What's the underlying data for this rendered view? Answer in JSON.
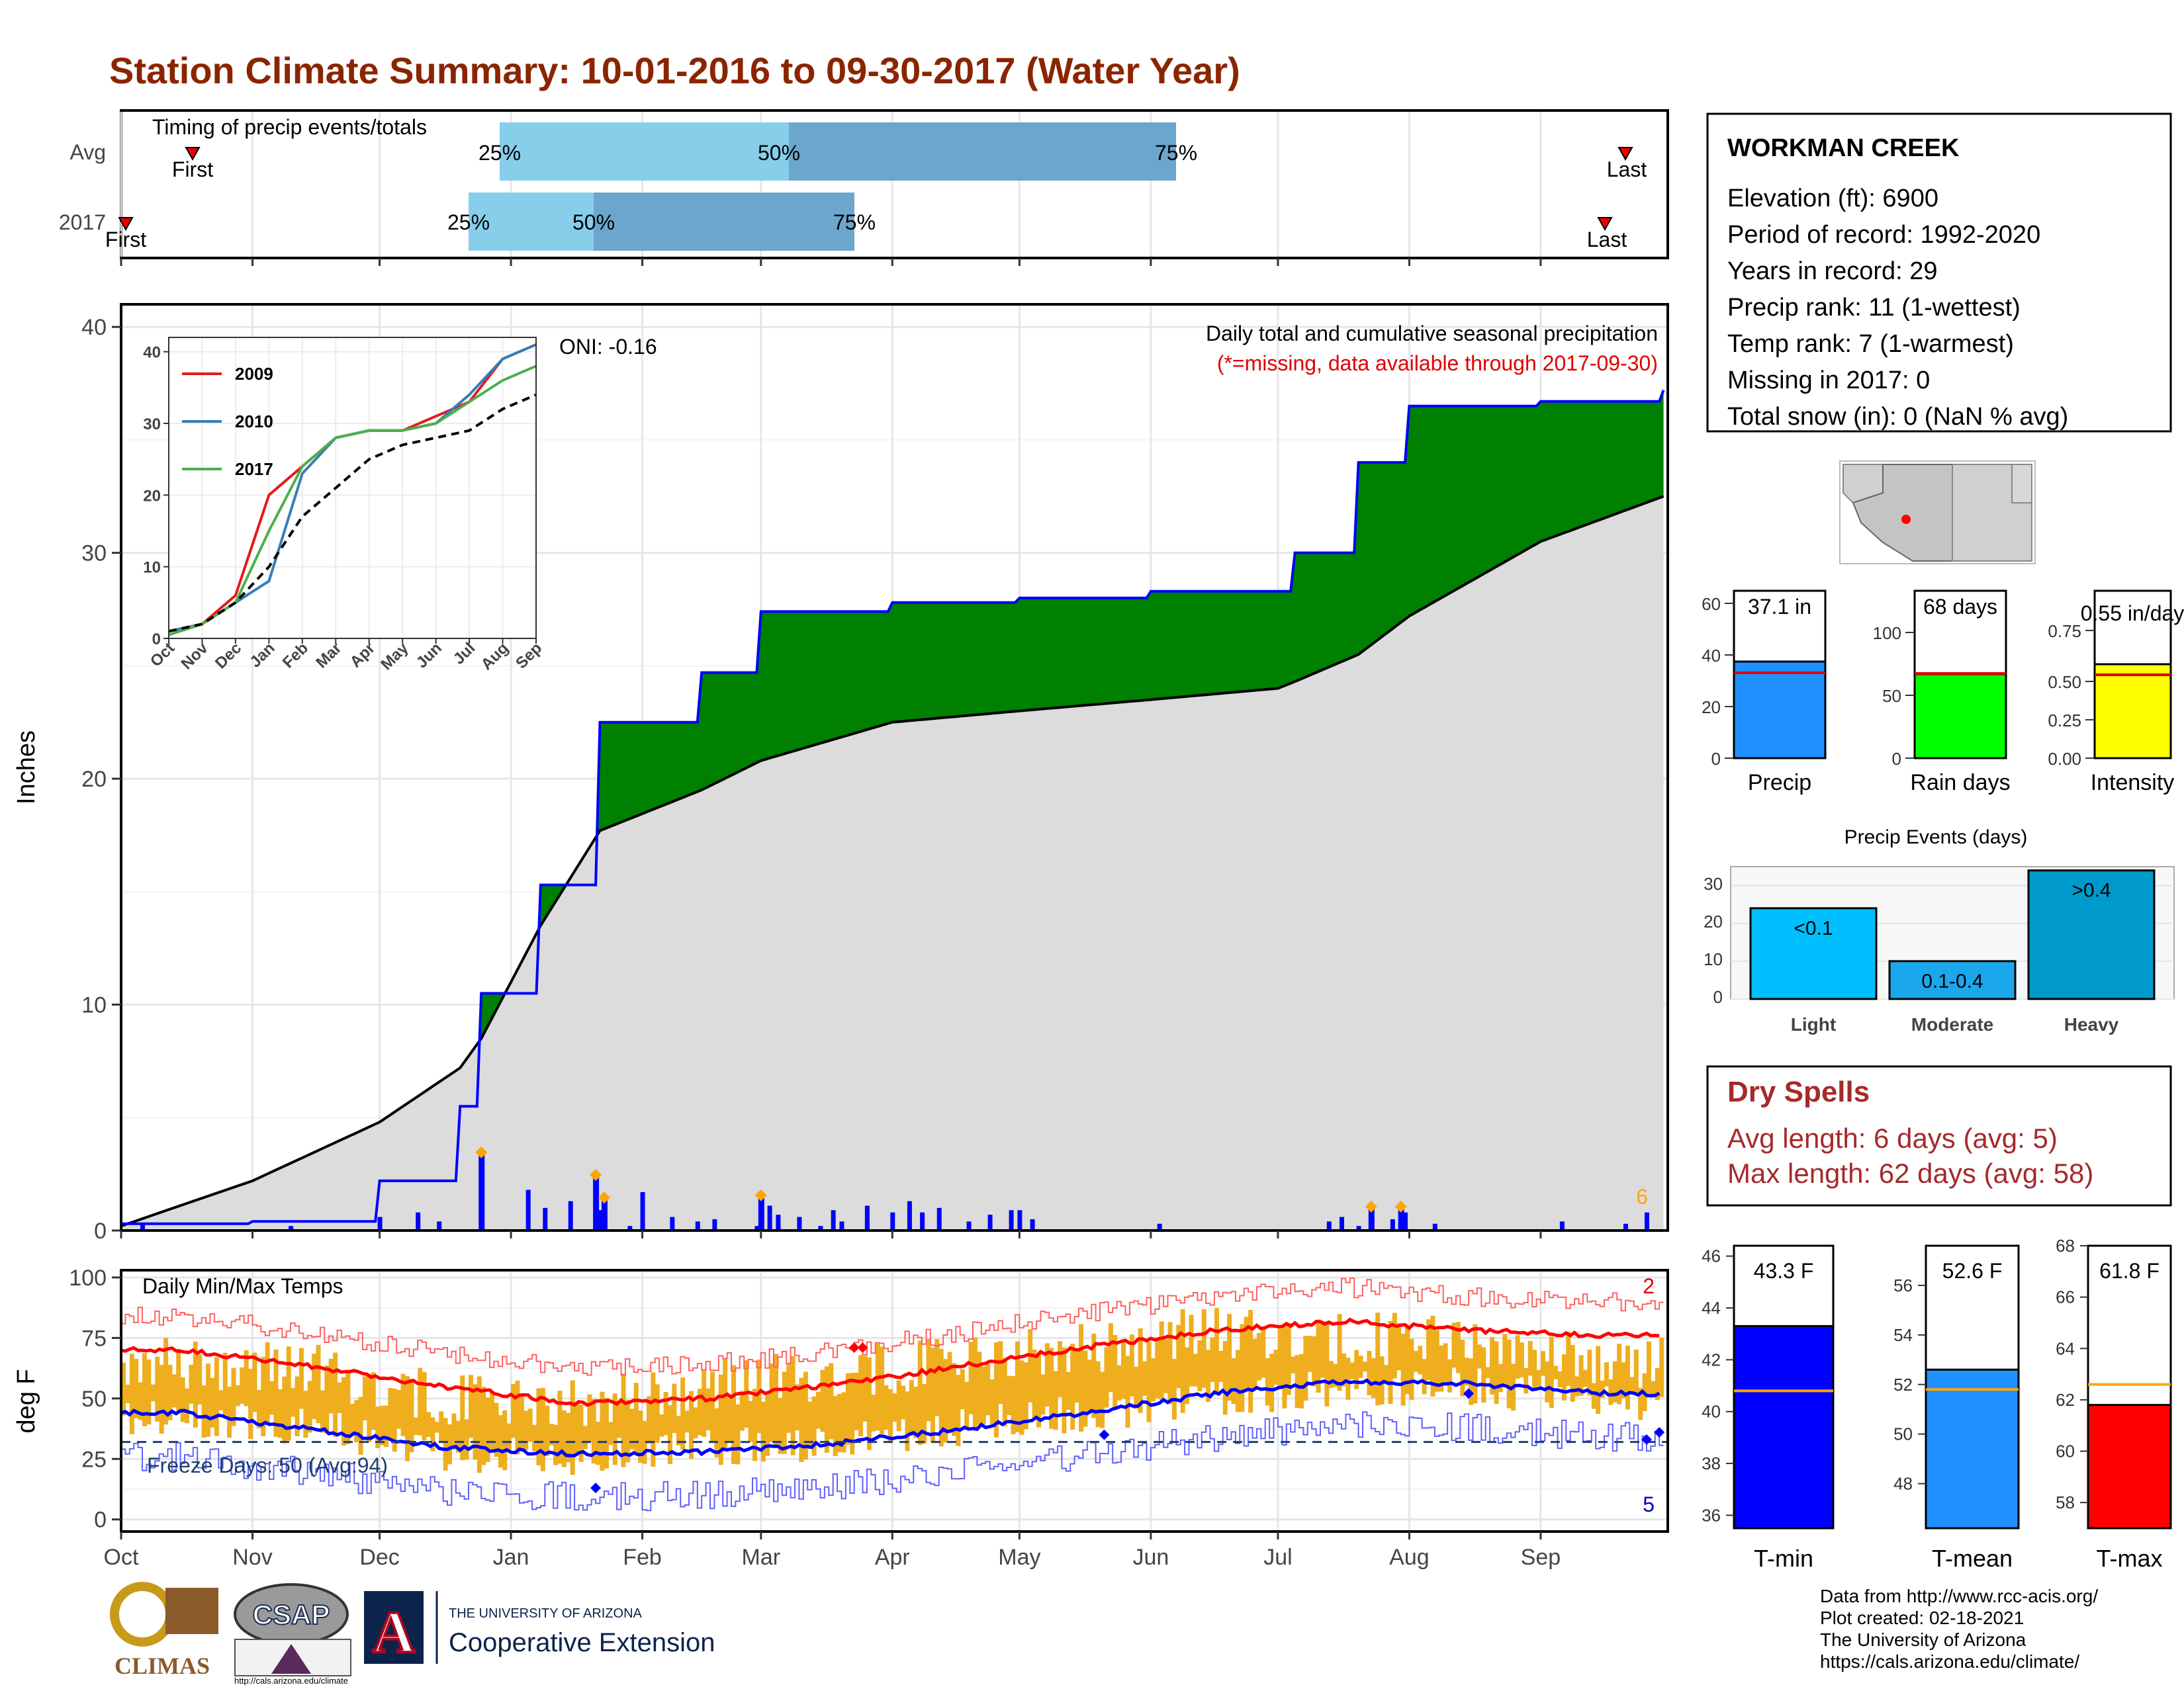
{
  "title": "Station Climate Summary: 10-01-2016 to 09-30-2017 (Water Year)",
  "colors": {
    "title": "#8B2500",
    "precip_bar": "#0000ff",
    "cum_green": "#008000",
    "cum_brown": "#8B5A00",
    "avg_gray": "#dcdcdc",
    "tmax": "#ff0000",
    "tmin": "#0000ff",
    "range": "#EEAE1E",
    "light_blue": "#87CEEB",
    "mid_blue": "#6CA6CD",
    "dryspell": "#A52A2A"
  },
  "timing": {
    "title": "Timing of precip events/totals",
    "rows": [
      {
        "label": "Avg",
        "first": "First",
        "last": "Last",
        "p25": "25%",
        "p50": "50%",
        "p75": "75%"
      },
      {
        "label": "2017",
        "first": "First",
        "last": "Last",
        "p25": "25%",
        "p50": "50%",
        "p75": "75%"
      }
    ]
  },
  "precip": {
    "ylabel": "Inches",
    "oni": "ONI: -0.16",
    "subtitle": "Daily total and cumulative seasonal precipitation",
    "missing_note": "(*=missing, data available through 2017-09-30)",
    "yticks": [
      "0",
      "10",
      "20",
      "30",
      "40"
    ],
    "max_label": "6"
  },
  "inset": {
    "yticks": [
      "0",
      "10",
      "20",
      "30",
      "40"
    ],
    "xticks": [
      "Oct",
      "Nov",
      "Dec",
      "Jan",
      "Feb",
      "Mar",
      "Apr",
      "May",
      "Jun",
      "Jul",
      "Aug",
      "Sep"
    ],
    "legend": [
      {
        "name": "2009",
        "color": "#e41a1c"
      },
      {
        "name": "2010",
        "color": "#377eb8"
      },
      {
        "name": "2017",
        "color": "#4daf4a"
      }
    ]
  },
  "temps": {
    "ylabel": "deg F",
    "title": "Daily Min/Max Temps",
    "freeze": "Freeze Days: 50 (Avg:94)",
    "yticks": [
      "0",
      "25",
      "50",
      "75",
      "100"
    ],
    "count_high": "2",
    "count_low": "5"
  },
  "months": [
    "Oct",
    "Nov",
    "Dec",
    "Jan",
    "Feb",
    "Mar",
    "Apr",
    "May",
    "Jun",
    "Jul",
    "Aug",
    "Sep"
  ],
  "station": {
    "name": "WORKMAN CREEK",
    "lines": [
      "Elevation (ft): 6900",
      "Period of record: 1992-2020",
      "Years in record: 29",
      "Precip rank: 11 (1-wettest)",
      "Temp rank: 7 (1-warmest)",
      "Missing in 2017: 0",
      "Total snow (in): 0 (NaN % avg)"
    ]
  },
  "mini_bars": [
    {
      "label": "Precip",
      "value_text": "37.1 in",
      "yticks": [
        "0",
        "20",
        "40",
        "60"
      ]
    },
    {
      "label": "Rain days",
      "value_text": "68 days",
      "yticks": [
        "0",
        "50",
        "100"
      ]
    },
    {
      "label": "Intensity",
      "value_text": "0.55 in/day",
      "yticks": [
        "0.00",
        "0.25",
        "0.50",
        "0.75"
      ]
    }
  ],
  "events": {
    "title": "Precip Events (days)",
    "bars": [
      {
        "label": "Light",
        "inner": "<0.1",
        "value": 24
      },
      {
        "label": "Moderate",
        "inner": "0.1-0.4",
        "value": 10
      },
      {
        "label": "Heavy",
        "inner": ">0.4",
        "value": 34
      }
    ],
    "yticks": [
      "0",
      "10",
      "20",
      "30"
    ]
  },
  "dry_spells": {
    "title": "Dry Spells",
    "avg": "Avg length: 6 days (avg: 5)",
    "max": "Max length: 62 days (avg: 58)"
  },
  "temp_bars": [
    {
      "label": "T-min",
      "value_text": "43.3 F",
      "value": 43.3,
      "avg": 40.8,
      "range": [
        35.5,
        46.4
      ],
      "yticks": [
        "36",
        "38",
        "40",
        "42",
        "44",
        "46"
      ],
      "color": "#0000ff"
    },
    {
      "label": "T-mean",
      "value_text": "52.6 F",
      "value": 52.6,
      "avg": 51.8,
      "range": [
        46.2,
        57.6
      ],
      "yticks": [
        "48",
        "50",
        "52",
        "54",
        "56"
      ],
      "color": "#1E90FF"
    },
    {
      "label": "T-max",
      "value_text": "61.8 F",
      "value": 61.8,
      "avg": 62.6,
      "range": [
        57.0,
        68.0
      ],
      "yticks": [
        "58",
        "60",
        "62",
        "64",
        "66",
        "68"
      ],
      "color": "#ff0000"
    }
  ],
  "credits": [
    "Data from http://www.rcc-acis.org/",
    "Plot created: 02-18-2021",
    "The University of Arizona",
    "https://cals.arizona.edu/climate/"
  ],
  "logos": {
    "climas": "CLIMAS",
    "csap": "CSAP",
    "csap_url": "http://cals.arizona.edu/climate",
    "ua_top": "THE UNIVERSITY OF ARIZONA",
    "ua_bottom": "Cooperative Extension"
  },
  "chart_data": [
    {
      "type": "area",
      "title": "Daily total and cumulative seasonal precipitation",
      "ylabel": "Inches",
      "ylim": [
        0,
        41
      ],
      "x": [
        "Oct 1",
        "Nov 1",
        "Dec 1",
        "Dec 20",
        "Dec 25",
        "Jan 8",
        "Jan 22",
        "Feb 15",
        "Mar 1",
        "Apr 1",
        "May 1",
        "Jun 1",
        "Jul 1",
        "Jul 5",
        "Jul 20",
        "Aug 1",
        "Sep 1",
        "Sep 30"
      ],
      "series": [
        {
          "name": "2017 cumulative",
          "values": [
            0.3,
            0.4,
            2.2,
            5.5,
            10.5,
            15.3,
            22.5,
            24.7,
            27.4,
            27.8,
            28.0,
            28.3,
            28.3,
            30.0,
            34.0,
            36.5,
            36.7,
            37.2
          ]
        },
        {
          "name": "average cumulative",
          "values": [
            0.2,
            2.2,
            4.8,
            7.2,
            8.5,
            13.5,
            17.7,
            19.5,
            20.8,
            22.5,
            23.0,
            23.5,
            24.0,
            24.3,
            25.5,
            27.2,
            30.5,
            32.5
          ]
        }
      ],
      "daily_peaks": [
        {
          "date": "Dec 25",
          "value": 3.4
        },
        {
          "date": "Jan 21",
          "value": 2.4
        },
        {
          "date": "Jan 23",
          "value": 1.4
        },
        {
          "date": "Mar 1",
          "value": 1.5
        },
        {
          "date": "Jul 23",
          "value": 1.0
        },
        {
          "date": "Jul 30",
          "value": 1.0
        }
      ]
    },
    {
      "type": "line",
      "title": "",
      "ylim": [
        0,
        42
      ],
      "xticks": [
        "Oct",
        "Nov",
        "Dec",
        "Jan",
        "Feb",
        "Mar",
        "Apr",
        "May",
        "Jun",
        "Jul",
        "Aug",
        "Sep"
      ],
      "series": [
        {
          "name": "2009",
          "values": [
            1,
            2,
            6,
            20,
            24,
            28,
            29,
            29,
            31,
            33,
            39,
            41
          ]
        },
        {
          "name": "2010",
          "values": [
            1,
            2,
            5,
            8,
            23,
            28,
            29,
            29,
            30,
            34,
            39,
            41
          ]
        },
        {
          "name": "2017",
          "values": [
            0.5,
            2,
            5,
            15,
            24,
            28,
            29,
            29,
            30,
            33,
            36,
            38
          ]
        },
        {
          "name": "average",
          "values": [
            1,
            2,
            5,
            10,
            17,
            21,
            25,
            27,
            28,
            29,
            32,
            34
          ]
        }
      ]
    },
    {
      "type": "line",
      "title": "Daily Min/Max Temps",
      "ylabel": "deg F",
      "ylim": [
        -5,
        103
      ],
      "xticks": [
        "Oct",
        "Nov",
        "Dec",
        "Jan",
        "Feb",
        "Mar",
        "Apr",
        "May",
        "Jun",
        "Jul",
        "Aug",
        "Sep"
      ],
      "series": [
        {
          "name": "avg max",
          "values": [
            70,
            63,
            55,
            48,
            50,
            55,
            63,
            71,
            78,
            82,
            78,
            76
          ]
        },
        {
          "name": "avg min",
          "values": [
            44,
            37,
            30,
            27,
            28,
            31,
            37,
            44,
            52,
            57,
            56,
            52
          ]
        },
        {
          "name": "2017 max",
          "values": [
            65,
            62,
            50,
            47,
            55,
            60,
            65,
            70,
            78,
            75,
            74,
            65
          ]
        },
        {
          "name": "2017 min",
          "values": [
            42,
            38,
            28,
            25,
            30,
            32,
            38,
            44,
            50,
            55,
            55,
            48
          ]
        }
      ],
      "freeze_line": 32
    }
  ]
}
